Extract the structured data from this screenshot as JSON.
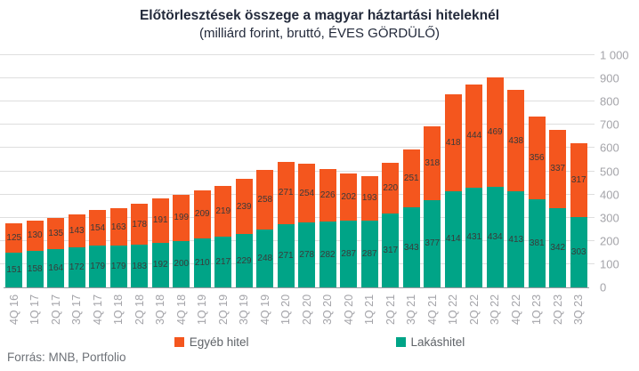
{
  "chart_data": {
    "type": "bar",
    "stacked": true,
    "title": "Előtörlesztések összege a magyar háztartási hiteleknél",
    "subtitle": "(milliárd forint, bruttó, ÉVES GÖRDÜLŐ)",
    "source": "Forrás: MNB, Portfolio",
    "categories": [
      "4Q 16",
      "1Q 17",
      "2Q 17",
      "3Q 17",
      "4Q 17",
      "1Q 18",
      "2Q 18",
      "3Q 18",
      "4Q 18",
      "1Q 19",
      "2Q 19",
      "3Q 19",
      "4Q 19",
      "1Q 20",
      "2Q 20",
      "3Q 20",
      "4Q 20",
      "1Q 21",
      "2Q 21",
      "3Q 21",
      "4Q 21",
      "1Q 22",
      "2Q 22",
      "3Q 22",
      "4Q 22",
      "1Q 23",
      "2Q 23",
      "3Q 23"
    ],
    "series": [
      {
        "name": "Lakáshitel",
        "color": "#00a487",
        "values": [
          151,
          158,
          164,
          172,
          179,
          179,
          183,
          192,
          200,
          210,
          217,
          229,
          248,
          271,
          278,
          282,
          287,
          287,
          317,
          343,
          377,
          414,
          431,
          434,
          413,
          381,
          342,
          303
        ]
      },
      {
        "name": "Egyéb hitel",
        "color": "#f4561e",
        "values": [
          125,
          130,
          135,
          143,
          154,
          163,
          178,
          191,
          199,
          209,
          219,
          239,
          258,
          271,
          254,
          226,
          202,
          193,
          220,
          251,
          318,
          418,
          444,
          469,
          438,
          356,
          337,
          317
        ]
      }
    ],
    "legend_entries": [
      "Egyéb hitel",
      "Lakáshitel"
    ],
    "legend_position": "bottom",
    "ylim": [
      0,
      1000
    ],
    "ytick_step": 100,
    "ytick_labels": [
      "0",
      "100",
      "200",
      "300",
      "400",
      "500",
      "600",
      "700",
      "800",
      "900",
      "1 000"
    ],
    "grid": true,
    "colors": {
      "egyeb_hitel": "#f4561e",
      "lakashitel": "#00a487",
      "title_text": "#232a3b",
      "axis_text": "#a4a4a9",
      "bar_label_text": "#3a3a3a",
      "gridline": "#dedede"
    }
  }
}
